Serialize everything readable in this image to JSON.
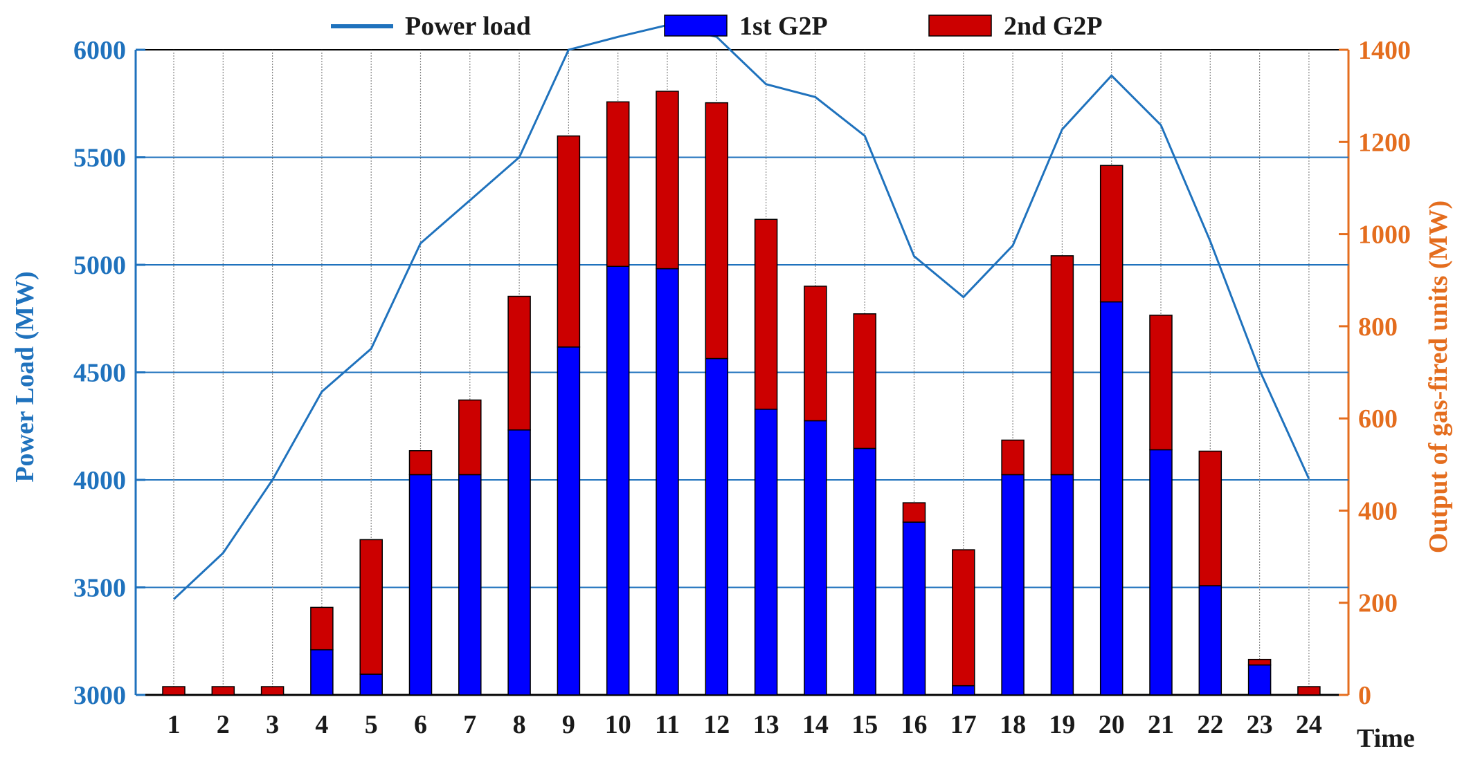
{
  "chart_data": {
    "type": "bar+line",
    "title": "",
    "xlabel": "Time",
    "ylabel_left": "Power Load (MW)",
    "ylabel_right": "Output of gas-fired units (MW)",
    "ylim_left": [
      3000,
      6000
    ],
    "ylim_right": [
      0,
      1400
    ],
    "yticks_left": [
      3000,
      3500,
      4000,
      4500,
      5000,
      5500,
      6000
    ],
    "yticks_right": [
      0,
      200,
      400,
      600,
      800,
      1000,
      1200,
      1400
    ],
    "categories": [
      "1",
      "2",
      "3",
      "4",
      "5",
      "6",
      "7",
      "8",
      "9",
      "10",
      "11",
      "12",
      "13",
      "14",
      "15",
      "16",
      "17",
      "18",
      "19",
      "20",
      "21",
      "22",
      "23",
      "24"
    ],
    "legend": [
      "Power load",
      "1st G2P",
      "2nd G2P"
    ],
    "legend_position": "top",
    "series": [
      {
        "name": "Power load",
        "type": "line",
        "axis": "left",
        "values": [
          3445,
          3660,
          4000,
          4410,
          4610,
          5100,
          5300,
          5500,
          6000,
          6060,
          6115,
          6060,
          5840,
          5780,
          5600,
          5040,
          4850,
          5090,
          5630,
          5880,
          5650,
          5110,
          4510,
          4005
        ]
      },
      {
        "name": "1st G2P",
        "type": "bar",
        "axis": "right",
        "values": [
          0,
          0,
          0,
          98,
          45,
          478,
          478,
          575,
          755,
          930,
          925,
          730,
          620,
          595,
          535,
          375,
          20,
          478,
          478,
          853,
          532,
          237,
          65,
          0
        ]
      },
      {
        "name": "2nd G2P",
        "type": "bar",
        "axis": "right",
        "values": [
          18,
          18,
          18,
          92,
          292,
          52,
          162,
          290,
          458,
          357,
          385,
          555,
          412,
          292,
          292,
          42,
          295,
          75,
          475,
          296,
          292,
          292,
          12,
          18
        ]
      }
    ],
    "colors": {
      "line": "#1f72bd",
      "bar1": "#0000ff",
      "bar2": "#cc0000",
      "left_axis": "#1f72bd",
      "right_axis": "#e46d1e",
      "text": "#1a1a1a"
    }
  }
}
